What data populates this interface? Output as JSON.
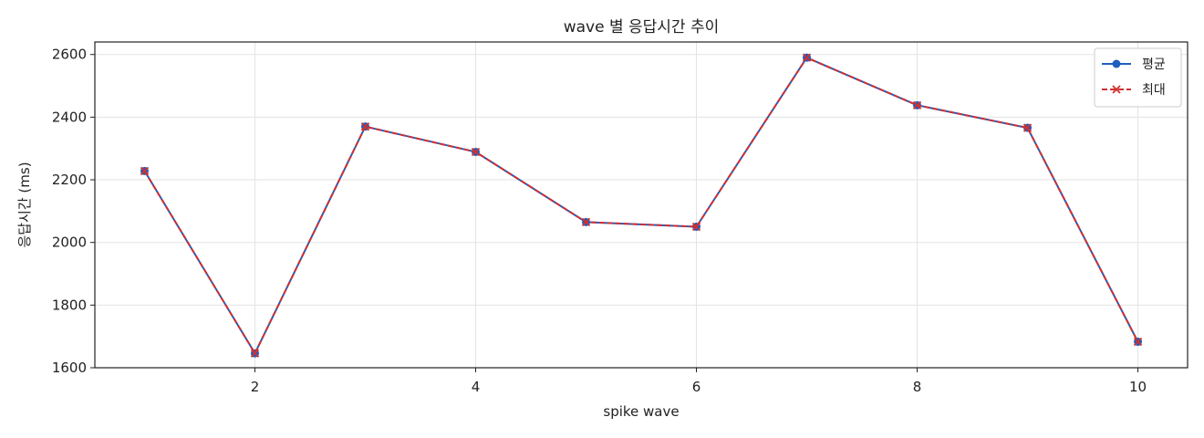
{
  "chart_data": {
    "type": "line",
    "title": "wave 별 응답시간 추이",
    "xlabel": "spike wave",
    "ylabel": "응답시간 (ms)",
    "x": [
      1,
      2,
      3,
      4,
      5,
      6,
      7,
      8,
      9,
      10
    ],
    "xlim": [
      0.55,
      10.45
    ],
    "ylim": [
      1600,
      2640
    ],
    "xticks": [
      2,
      4,
      6,
      8,
      10
    ],
    "yticks": [
      1600,
      1800,
      2000,
      2200,
      2400,
      2600
    ],
    "grid": true,
    "legend_position": "top-right",
    "series": [
      {
        "name": "평균",
        "values": [
          2228,
          1646,
          2370,
          2289,
          2065,
          2050,
          2590,
          2438,
          2366,
          1683
        ],
        "color": "#1f5fbf",
        "line_style": "solid",
        "marker": "circle"
      },
      {
        "name": "최대",
        "values": [
          2228,
          1646,
          2370,
          2289,
          2065,
          2050,
          2590,
          2438,
          2366,
          1683
        ],
        "color": "#d03030",
        "line_style": "dashed",
        "marker": "x"
      }
    ]
  }
}
